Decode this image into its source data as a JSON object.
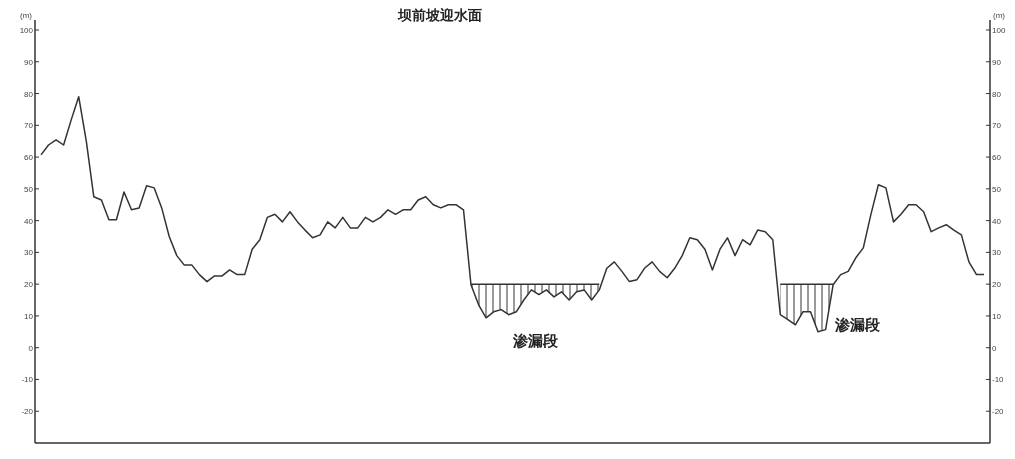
{
  "chart_data": {
    "type": "line",
    "title": "坝前坡迎水面",
    "ylabel": "(m)",
    "y2label": "(m)",
    "categories": [
      null,
      null,
      null,
      null,
      null,
      null,
      null,
      null,
      null,
      null,
      null,
      null,
      null,
      null,
      null,
      null,
      null,
      null,
      null,
      null,
      null,
      null,
      null,
      null,
      null,
      null,
      null,
      null,
      null,
      null,
      null,
      null,
      null,
      null,
      null,
      null,
      null,
      null,
      null,
      null,
      null,
      null,
      null,
      null,
      null,
      null,
      null,
      null,
      null,
      null,
      null,
      null,
      null,
      null,
      null,
      null,
      null,
      null,
      null,
      null,
      null,
      null,
      null,
      null,
      null,
      null,
      null,
      null,
      null,
      null,
      null,
      null,
      null,
      null,
      null,
      null,
      null,
      null,
      null,
      null,
      null,
      null,
      null,
      null,
      null,
      null,
      null,
      null,
      null,
      null,
      null,
      null,
      null,
      null,
      null,
      null,
      null,
      null,
      null,
      null,
      null,
      null,
      null,
      null,
      null,
      null,
      null,
      null,
      null,
      null,
      null,
      null,
      null,
      null,
      null,
      null,
      null,
      null,
      null,
      null,
      null,
      null,
      null,
      null,
      null,
      null
    ],
    "series": [
      {
        "color": "#333333",
        "values": [
          60.7,
          63.8,
          65.4,
          63.8,
          71.7,
          79,
          65,
          47.5,
          46.5,
          40.3,
          40.3,
          49,
          43.4,
          44,
          51,
          50.3,
          44,
          35,
          29,
          26,
          26,
          23,
          20.8,
          22.6,
          22.6,
          24.5,
          23,
          23,
          31,
          34,
          41,
          42,
          39.6,
          42.8,
          39.6,
          37,
          34.6,
          35.5,
          39.6,
          37.7,
          41,
          37.7,
          37.7,
          41,
          39.6,
          41,
          43.4,
          42,
          43.4,
          43.4,
          46.5,
          47.5,
          45,
          44,
          45,
          45,
          43.4,
          19.8,
          13.5,
          9.4,
          11.3,
          12,
          10.4,
          11.3,
          15,
          18.2,
          16.7,
          18.2,
          16,
          17.6,
          15,
          17.6,
          18.2,
          15,
          18.2,
          25,
          27,
          24,
          20.8,
          21.4,
          25,
          27,
          24,
          22,
          25,
          29,
          34.6,
          34,
          31,
          24.5,
          31,
          34.6,
          29,
          34,
          32.4,
          37,
          36.5,
          34,
          10.4,
          8.8,
          7.2,
          11.3,
          11.3,
          5,
          5.7,
          19.8,
          23,
          24,
          28.3,
          31.4,
          41.8,
          51.3,
          50.3,
          39.6,
          42,
          45,
          45,
          42.8,
          36.5,
          37.7,
          38.7,
          37,
          35.5,
          27,
          23,
          23
        ]
      },
      {
        "color": "#333333",
        "values": [
          null,
          null,
          null,
          null,
          null,
          null,
          null,
          null,
          null,
          null,
          null,
          null,
          null,
          null,
          null,
          null,
          null,
          null,
          null,
          null,
          null,
          null,
          null,
          null,
          null,
          null,
          null,
          null,
          null,
          null,
          null,
          null,
          null,
          null,
          null,
          null,
          null,
          null,
          null,
          null,
          null,
          null,
          null,
          null,
          null,
          null,
          null,
          null,
          null,
          null,
          null,
          null,
          null,
          null,
          null,
          null,
          null,
          20,
          20,
          20,
          20,
          20,
          20,
          20,
          20,
          20,
          20,
          20,
          20,
          20,
          20,
          20,
          20,
          20,
          20,
          null,
          null,
          null,
          null,
          null,
          null,
          null,
          null,
          null,
          null,
          null,
          null,
          null,
          null,
          null,
          null,
          null,
          null,
          null,
          null,
          null,
          null,
          null,
          20,
          20,
          20,
          20,
          20,
          20,
          20,
          20,
          null,
          null,
          null,
          null,
          null,
          null,
          null,
          null,
          null,
          null,
          null,
          null,
          null,
          null,
          null,
          null,
          null,
          null,
          null,
          null
        ],
        "lower": [
          null,
          null,
          null,
          null,
          null,
          null,
          null,
          null,
          null,
          null,
          null,
          null,
          null,
          null,
          null,
          null,
          null,
          null,
          null,
          null,
          null,
          null,
          null,
          null,
          null,
          null,
          null,
          null,
          null,
          null,
          null,
          null,
          null,
          null,
          null,
          null,
          null,
          null,
          null,
          null,
          null,
          null,
          null,
          null,
          null,
          null,
          null,
          null,
          null,
          null,
          null,
          null,
          null,
          null,
          null,
          null,
          null,
          19.8,
          13.5,
          9.4,
          11.3,
          12,
          10.4,
          11.3,
          15,
          18.2,
          16.7,
          18.2,
          16,
          17.6,
          15,
          17.6,
          18.2,
          15,
          18.2,
          null,
          null,
          null,
          null,
          null,
          null,
          null,
          null,
          null,
          null,
          null,
          null,
          null,
          null,
          null,
          null,
          null,
          null,
          null,
          null,
          null,
          null,
          null,
          10.4,
          8.8,
          7.2,
          11.3,
          11.3,
          5,
          5.7,
          19.8,
          null,
          null,
          null,
          null,
          null,
          null,
          null,
          null,
          null,
          null,
          null,
          null,
          null,
          null,
          null,
          null,
          null,
          null,
          null,
          null
        ],
        "upper": [
          null,
          null,
          null,
          null,
          null,
          null,
          null,
          null,
          null,
          null,
          null,
          null,
          null,
          null,
          null,
          null,
          null,
          null,
          null,
          null,
          null,
          null,
          null,
          null,
          null,
          null,
          null,
          null,
          null,
          null,
          null,
          null,
          null,
          null,
          null,
          null,
          null,
          null,
          null,
          null,
          null,
          null,
          null,
          null,
          null,
          null,
          null,
          null,
          null,
          null,
          null,
          null,
          null,
          null,
          null,
          null,
          null,
          20,
          20,
          20,
          20,
          20,
          20,
          20,
          20,
          20,
          20,
          20,
          20,
          20,
          20,
          20,
          20,
          20,
          20,
          null,
          null,
          null,
          null,
          null,
          null,
          null,
          null,
          null,
          null,
          null,
          null,
          null,
          null,
          null,
          null,
          null,
          null,
          null,
          null,
          null,
          null,
          null,
          20,
          20,
          20,
          20,
          20,
          20,
          20,
          20,
          null,
          null,
          null,
          null,
          null,
          null,
          null,
          null,
          null,
          null,
          null,
          null,
          null,
          null,
          null,
          null,
          null,
          null,
          null,
          null
        ]
      }
    ],
    "annotations": [
      "渗漏段",
      "渗漏段"
    ],
    "ylim": [
      -30,
      100
    ],
    "yticks": [
      -20,
      -10,
      0,
      10,
      20,
      30,
      40,
      50,
      60,
      70,
      80,
      90,
      100
    ],
    "y2lim": [
      -30,
      100
    ],
    "y2ticks": [
      -20,
      -10,
      0,
      10,
      20,
      30,
      40,
      50,
      60,
      70,
      80,
      90,
      100
    ],
    "tick_labels": "y",
    "grid": false
  }
}
